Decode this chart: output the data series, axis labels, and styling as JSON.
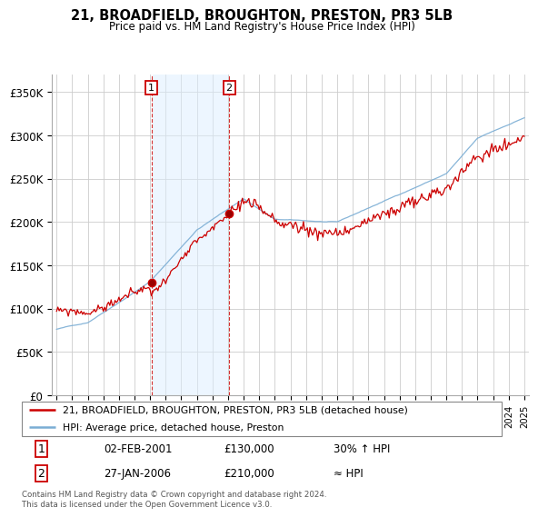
{
  "title": "21, BROADFIELD, BROUGHTON, PRESTON, PR3 5LB",
  "subtitle": "Price paid vs. HM Land Registry's House Price Index (HPI)",
  "ylabel_ticks": [
    "£0",
    "£50K",
    "£100K",
    "£150K",
    "£200K",
    "£250K",
    "£300K",
    "£350K"
  ],
  "ylim": [
    0,
    370000
  ],
  "yticks": [
    0,
    50000,
    100000,
    150000,
    200000,
    250000,
    300000,
    350000
  ],
  "xlim_start": 1994.7,
  "xlim_end": 2025.3,
  "sale1_x": 2001.085,
  "sale1_y": 130000,
  "sale2_x": 2006.07,
  "sale2_y": 210000,
  "sale1_label": "1",
  "sale2_label": "2",
  "legend_line1": "21, BROADFIELD, BROUGHTON, PRESTON, PR3 5LB (detached house)",
  "legend_line2": "HPI: Average price, detached house, Preston",
  "table_row1": [
    "1",
    "02-FEB-2001",
    "£130,000",
    "30% ↑ HPI"
  ],
  "table_row2": [
    "2",
    "27-JAN-2006",
    "£210,000",
    "≈ HPI"
  ],
  "footer": "Contains HM Land Registry data © Crown copyright and database right 2024.\nThis data is licensed under the Open Government Licence v3.0.",
  "hpi_color": "#7aadd4",
  "price_color": "#cc0000",
  "shade_color": "#ddeeff",
  "vline_color": "#cc0000",
  "background_color": "#ffffff",
  "grid_color": "#cccccc"
}
